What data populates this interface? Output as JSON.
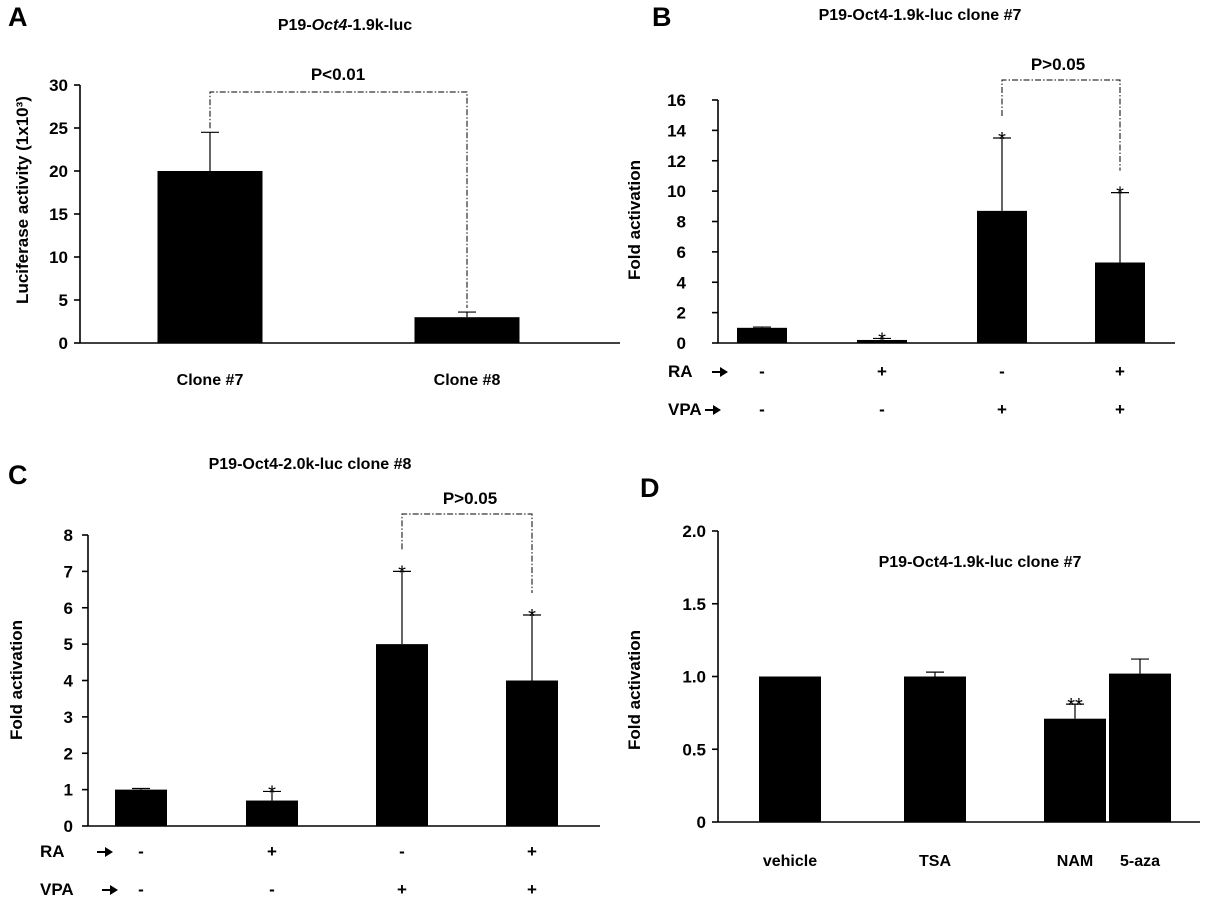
{
  "chart_data": [
    {
      "type": "bar",
      "panel": "A",
      "title_parts": [
        "P19-",
        "Oct4",
        "-1.9k-luc"
      ],
      "ylabel": "Luciferase activity (1x10³)",
      "ylim": [
        0,
        30
      ],
      "yticks": [
        "0",
        "5",
        "10",
        "15",
        "20",
        "25",
        "30"
      ],
      "categories": [
        "Clone #7",
        "Clone #8"
      ],
      "values": [
        20,
        3
      ],
      "errors": [
        4.5,
        0.6
      ],
      "stars": [
        "",
        ""
      ],
      "comparison": {
        "from": 0,
        "to": 1,
        "label": "P<0.01"
      }
    },
    {
      "type": "bar",
      "panel": "B",
      "title": "P19-Oct4-1.9k-luc clone #7",
      "ylabel": "Fold activation",
      "ylim": [
        0,
        16
      ],
      "yticks": [
        "0",
        "2",
        "4",
        "6",
        "8",
        "10",
        "12",
        "14",
        "16"
      ],
      "values": [
        1.0,
        0.2,
        8.7,
        5.3
      ],
      "errors": [
        0.05,
        0.1,
        4.8,
        4.6
      ],
      "stars": [
        "",
        "*",
        "*",
        "*"
      ],
      "conditions": [
        {
          "label": "RA",
          "signs": [
            "-",
            "+",
            "-",
            "+"
          ]
        },
        {
          "label": "VPA",
          "signs": [
            "-",
            "-",
            "+",
            "+"
          ]
        }
      ],
      "comparison": {
        "from": 2,
        "to": 3,
        "label": "P>0.05"
      }
    },
    {
      "type": "bar",
      "panel": "C",
      "title": "P19-Oct4-2.0k-luc clone #8",
      "ylabel": "Fold activation",
      "ylim": [
        0,
        8
      ],
      "yticks": [
        "0",
        "1",
        "2",
        "3",
        "4",
        "5",
        "6",
        "7",
        "8"
      ],
      "values": [
        1.0,
        0.7,
        5.0,
        4.0
      ],
      "errors": [
        0.03,
        0.25,
        2.0,
        1.8
      ],
      "stars": [
        "",
        "*",
        "*",
        "*"
      ],
      "conditions": [
        {
          "label": "RA",
          "signs": [
            "-",
            "+",
            "-",
            "+"
          ]
        },
        {
          "label": "VPA",
          "signs": [
            "-",
            "-",
            "+",
            "+"
          ]
        }
      ],
      "comparison": {
        "from": 2,
        "to": 3,
        "label": "P>0.05"
      }
    },
    {
      "type": "bar",
      "panel": "D",
      "title": "P19-Oct4-1.9k-luc clone #7",
      "ylabel": "Fold activation",
      "ylim": [
        0,
        2.0
      ],
      "yticks": [
        "0",
        "0.5",
        "1.0",
        "1.5",
        "2.0"
      ],
      "categories": [
        "vehicle",
        "TSA",
        "NAM",
        "5-aza"
      ],
      "values": [
        1.0,
        1.0,
        0.71,
        1.02
      ],
      "errors": [
        0.0,
        0.03,
        0.1,
        0.1
      ],
      "stars": [
        "",
        "",
        "**",
        ""
      ]
    }
  ]
}
